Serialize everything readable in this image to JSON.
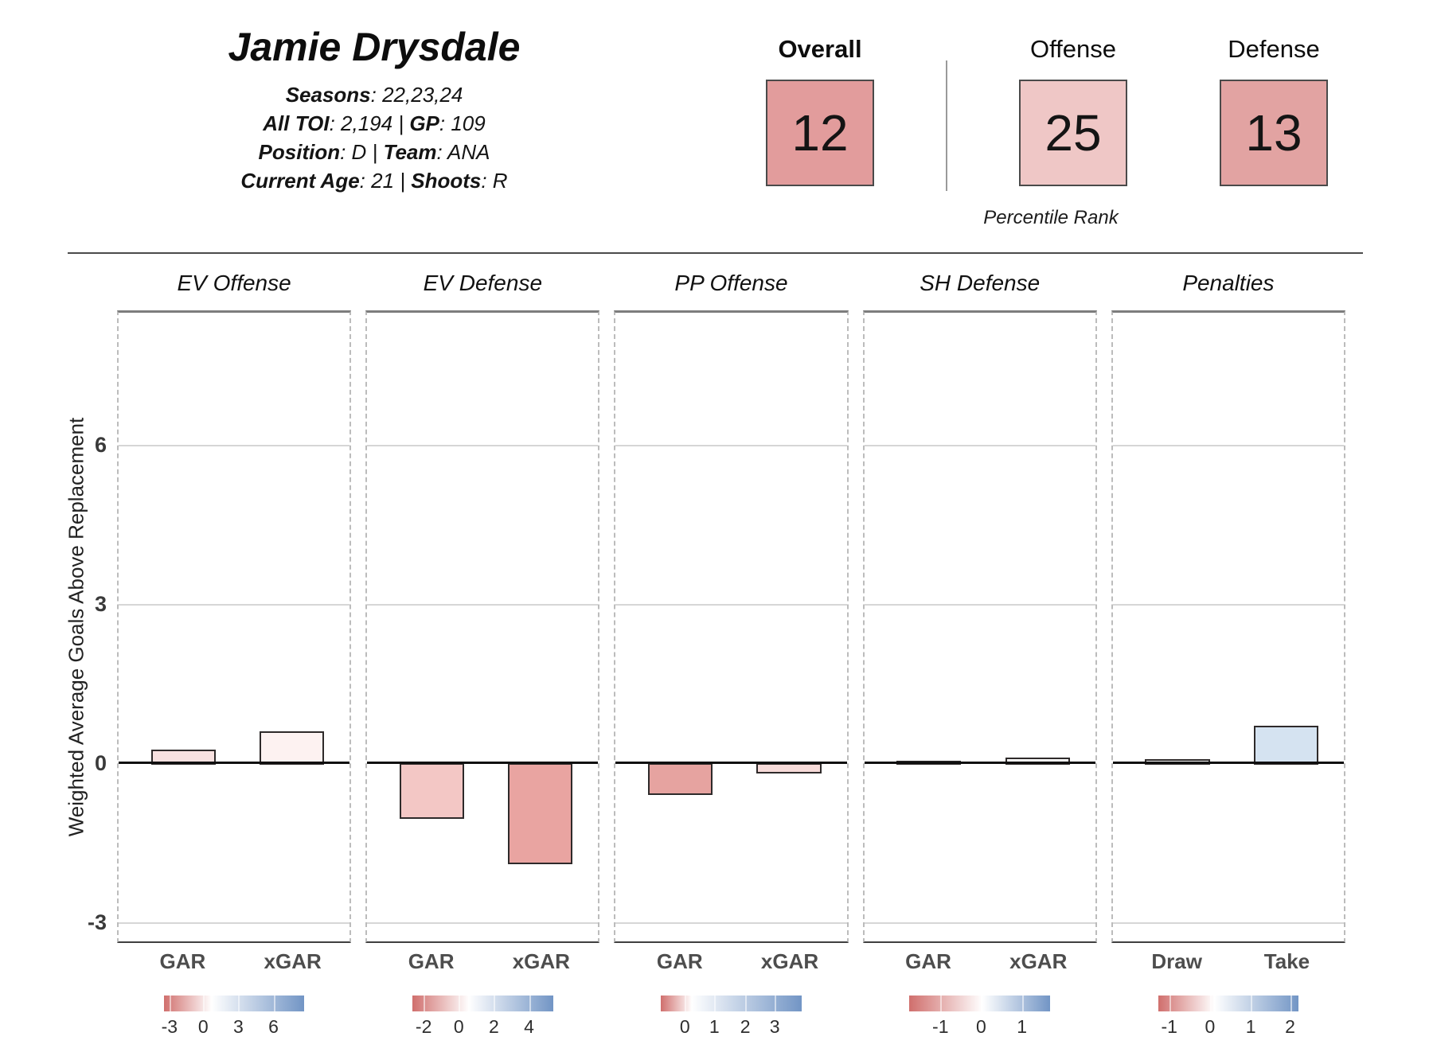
{
  "header": {
    "player_name": "Jamie Drysdale",
    "separator": " | ",
    "info_lines": [
      [
        {
          "b": "Seasons",
          "r": ": 22,23,24"
        }
      ],
      [
        {
          "b": "All TOI",
          "r": ": 2,194"
        },
        {
          "b": "GP",
          "r": ": 109"
        }
      ],
      [
        {
          "b": "Position",
          "r": ": D"
        },
        {
          "b": "Team",
          "r": ": ANA"
        }
      ],
      [
        {
          "b": "Current Age",
          "r": ": 21"
        },
        {
          "b": "Shoots",
          "r": ": R"
        }
      ]
    ],
    "percentile_caption": "Percentile Rank",
    "ranks": [
      {
        "label": "Overall",
        "value": "12",
        "color": "#e29c9c",
        "bold": true
      },
      {
        "label": "Offense",
        "value": "25",
        "color": "#efc7c6",
        "bold": false
      },
      {
        "label": "Defense",
        "value": "13",
        "color": "#e2a3a2",
        "bold": false
      }
    ]
  },
  "chart_data": {
    "type": "bar",
    "title": "",
    "xlabel": "",
    "ylabel": "Weighted Average Goals Above Replacement",
    "ylim": [
      -3.4,
      8.5
    ],
    "yticks": [
      6,
      3,
      0,
      -3
    ],
    "gridlines": [
      6,
      3,
      -3
    ],
    "zero_line": 0,
    "grid": true,
    "legend_position": "below-each-panel",
    "legend_gradient": {
      "red": "#d06f6d",
      "white": "#ffffff",
      "blue": "#7295c5"
    },
    "panels": [
      {
        "title": "EV Offense",
        "categories": [
          "GAR",
          "xGAR"
        ],
        "bars": [
          {
            "label": "GAR",
            "value": 0.25,
            "color": "#f8e1e0"
          },
          {
            "label": "xGAR",
            "value": 0.6,
            "color": "#fdf2f1"
          }
        ],
        "legend": {
          "white_pos_pct": 34,
          "ticks": [
            {
              "label": "-3",
              "pos_pct": 4
            },
            {
              "label": "0",
              "pos_pct": 28
            },
            {
              "label": "3",
              "pos_pct": 53
            },
            {
              "label": "6",
              "pos_pct": 78
            }
          ]
        }
      },
      {
        "title": "EV Defense",
        "categories": [
          "GAR",
          "xGAR"
        ],
        "bars": [
          {
            "label": "GAR",
            "value": -1.05,
            "color": "#f3c7c5"
          },
          {
            "label": "xGAR",
            "value": -1.9,
            "color": "#e9a4a1"
          }
        ],
        "legend": {
          "white_pos_pct": 40,
          "ticks": [
            {
              "label": "-2",
              "pos_pct": 8
            },
            {
              "label": "0",
              "pos_pct": 33
            },
            {
              "label": "2",
              "pos_pct": 58
            },
            {
              "label": "4",
              "pos_pct": 83
            }
          ]
        }
      },
      {
        "title": "PP Offense",
        "categories": [
          "GAR",
          "xGAR"
        ],
        "bars": [
          {
            "label": "GAR",
            "value": -0.6,
            "color": "#e6a3a0"
          },
          {
            "label": "xGAR",
            "value": -0.2,
            "color": "#f7dbd9"
          }
        ],
        "legend": {
          "white_pos_pct": 22,
          "ticks": [
            {
              "label": "0",
              "pos_pct": 17
            },
            {
              "label": "1",
              "pos_pct": 38
            },
            {
              "label": "2",
              "pos_pct": 60
            },
            {
              "label": "3",
              "pos_pct": 81
            }
          ]
        }
      },
      {
        "title": "SH Defense",
        "categories": [
          "GAR",
          "xGAR"
        ],
        "bars": [
          {
            "label": "GAR",
            "value": 0.05,
            "color": "#fefefe"
          },
          {
            "label": "xGAR",
            "value": 0.1,
            "color": "#fdfdfd"
          }
        ],
        "legend": {
          "white_pos_pct": 52,
          "ticks": [
            {
              "label": "-1",
              "pos_pct": 22
            },
            {
              "label": "0",
              "pos_pct": 51
            },
            {
              "label": "1",
              "pos_pct": 80
            }
          ]
        }
      },
      {
        "title": "Penalties",
        "categories": [
          "Draw",
          "Take"
        ],
        "bars": [
          {
            "label": "Draw",
            "value": 0.08,
            "color": "#fdfdfd"
          },
          {
            "label": "Take",
            "value": 0.7,
            "color": "#d5e3f1"
          }
        ],
        "legend": {
          "white_pos_pct": 40,
          "ticks": [
            {
              "label": "-1",
              "pos_pct": 8
            },
            {
              "label": "0",
              "pos_pct": 37
            },
            {
              "label": "1",
              "pos_pct": 66
            },
            {
              "label": "2",
              "pos_pct": 94
            }
          ]
        }
      }
    ]
  }
}
